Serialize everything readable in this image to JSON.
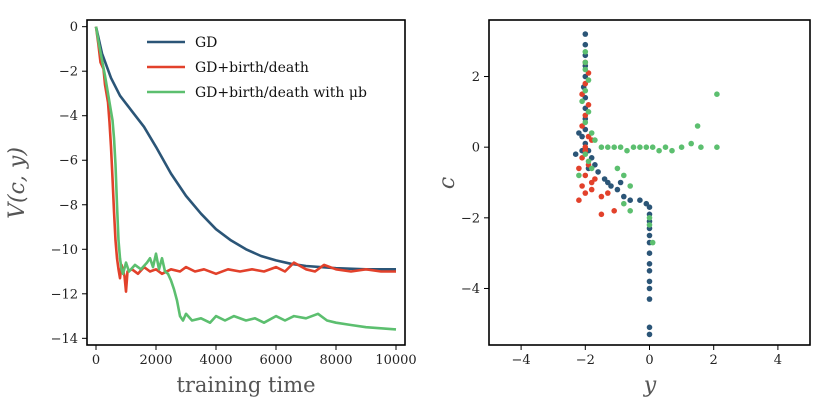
{
  "chart_data": [
    {
      "type": "line",
      "xlabel": "training time",
      "ylabel": "V(c, y)",
      "xlim": [
        -300,
        10300
      ],
      "ylim": [
        -14.3,
        0.3
      ],
      "xticks": [
        0,
        2000,
        4000,
        6000,
        8000,
        10000
      ],
      "yticks": [
        0,
        -2,
        -4,
        -6,
        -8,
        -10,
        -12,
        -14
      ],
      "xtick_labels": [
        "0",
        "2000",
        "4000",
        "6000",
        "8000",
        "10000"
      ],
      "ytick_labels": [
        "0",
        "−2",
        "−4",
        "−6",
        "−8",
        "−10",
        "−12",
        "−14"
      ],
      "legend": {
        "placement": "top-right",
        "entries": [
          "GD",
          "GD+birth/death",
          "GD+birth/death with μb"
        ]
      },
      "series": [
        {
          "name": "GD",
          "color": "#2b5577",
          "points": [
            [
              0,
              0
            ],
            [
              200,
              -1.2
            ],
            [
              500,
              -2.3
            ],
            [
              800,
              -3.1
            ],
            [
              1200,
              -3.8
            ],
            [
              1600,
              -4.5
            ],
            [
              2000,
              -5.4
            ],
            [
              2500,
              -6.6
            ],
            [
              3000,
              -7.6
            ],
            [
              3500,
              -8.4
            ],
            [
              4000,
              -9.1
            ],
            [
              4500,
              -9.6
            ],
            [
              5000,
              -10.0
            ],
            [
              5500,
              -10.3
            ],
            [
              6000,
              -10.5
            ],
            [
              6500,
              -10.65
            ],
            [
              7000,
              -10.75
            ],
            [
              8000,
              -10.85
            ],
            [
              9000,
              -10.9
            ],
            [
              10000,
              -10.9
            ]
          ]
        },
        {
          "name": "GD+birth/death",
          "color": "#e2412b",
          "points": [
            [
              0,
              0
            ],
            [
              80,
              -0.8
            ],
            [
              150,
              -1.6
            ],
            [
              250,
              -1.9
            ],
            [
              300,
              -2.6
            ],
            [
              400,
              -3.4
            ],
            [
              450,
              -4.3
            ],
            [
              500,
              -5.4
            ],
            [
              550,
              -6.8
            ],
            [
              600,
              -8.3
            ],
            [
              650,
              -9.6
            ],
            [
              700,
              -10.4
            ],
            [
              750,
              -10.9
            ],
            [
              800,
              -11.3
            ],
            [
              850,
              -10.7
            ],
            [
              950,
              -11.2
            ],
            [
              1000,
              -11.9
            ],
            [
              1050,
              -11.0
            ],
            [
              1200,
              -10.9
            ],
            [
              1400,
              -11.1
            ],
            [
              1600,
              -10.8
            ],
            [
              1800,
              -11.0
            ],
            [
              2000,
              -10.9
            ],
            [
              2200,
              -11.1
            ],
            [
              2500,
              -10.9
            ],
            [
              2800,
              -11.0
            ],
            [
              3000,
              -10.8
            ],
            [
              3300,
              -11.0
            ],
            [
              3600,
              -10.9
            ],
            [
              4000,
              -11.1
            ],
            [
              4400,
              -10.9
            ],
            [
              4800,
              -11.0
            ],
            [
              5200,
              -10.9
            ],
            [
              5600,
              -11.0
            ],
            [
              6000,
              -10.8
            ],
            [
              6300,
              -11.0
            ],
            [
              6600,
              -10.6
            ],
            [
              7000,
              -10.9
            ],
            [
              7300,
              -11.0
            ],
            [
              7600,
              -10.7
            ],
            [
              8000,
              -10.9
            ],
            [
              8500,
              -11.0
            ],
            [
              9000,
              -10.9
            ],
            [
              9500,
              -11.0
            ],
            [
              10000,
              -11.0
            ]
          ]
        },
        {
          "name": "GD+birth/death with μb",
          "color": "#5cbf6f",
          "points": [
            [
              0,
              0
            ],
            [
              100,
              -0.8
            ],
            [
              200,
              -1.5
            ],
            [
              300,
              -2.2
            ],
            [
              400,
              -3.0
            ],
            [
              500,
              -3.8
            ],
            [
              550,
              -4.2
            ],
            [
              600,
              -5.0
            ],
            [
              650,
              -6.2
            ],
            [
              700,
              -8.0
            ],
            [
              750,
              -9.6
            ],
            [
              800,
              -10.4
            ],
            [
              850,
              -10.9
            ],
            [
              900,
              -11.1
            ],
            [
              1000,
              -10.6
            ],
            [
              1100,
              -11.0
            ],
            [
              1300,
              -10.7
            ],
            [
              1500,
              -10.9
            ],
            [
              1700,
              -10.6
            ],
            [
              1800,
              -10.4
            ],
            [
              1900,
              -10.8
            ],
            [
              2000,
              -10.2
            ],
            [
              2100,
              -10.9
            ],
            [
              2200,
              -10.4
            ],
            [
              2300,
              -11.0
            ],
            [
              2400,
              -11.1
            ],
            [
              2500,
              -11.4
            ],
            [
              2600,
              -11.8
            ],
            [
              2700,
              -12.3
            ],
            [
              2800,
              -13.0
            ],
            [
              2900,
              -13.2
            ],
            [
              3000,
              -12.9
            ],
            [
              3200,
              -13.2
            ],
            [
              3500,
              -13.1
            ],
            [
              3800,
              -13.3
            ],
            [
              4000,
              -13.0
            ],
            [
              4300,
              -13.2
            ],
            [
              4600,
              -13.0
            ],
            [
              5000,
              -13.2
            ],
            [
              5300,
              -13.1
            ],
            [
              5600,
              -13.3
            ],
            [
              6000,
              -13.0
            ],
            [
              6300,
              -13.2
            ],
            [
              6600,
              -13.0
            ],
            [
              7000,
              -13.1
            ],
            [
              7400,
              -12.9
            ],
            [
              7700,
              -13.2
            ],
            [
              8000,
              -13.3
            ],
            [
              8500,
              -13.4
            ],
            [
              9000,
              -13.5
            ],
            [
              9500,
              -13.55
            ],
            [
              10000,
              -13.6
            ]
          ]
        }
      ]
    },
    {
      "type": "scatter",
      "xlabel": "y",
      "ylabel": "c",
      "xlim": [
        -5,
        5
      ],
      "ylim": [
        -5.6,
        3.6
      ],
      "xticks": [
        -4,
        -2,
        0,
        2,
        4
      ],
      "yticks": [
        2,
        0,
        -2,
        -4
      ],
      "xtick_labels": [
        "−4",
        "−2",
        "0",
        "2",
        "4"
      ],
      "ytick_labels": [
        "2",
        "0",
        "−2",
        "−4"
      ],
      "series": [
        {
          "color": "#2b5577",
          "points": [
            [
              -2.0,
              3.2
            ],
            [
              -2.0,
              2.9
            ],
            [
              -2.0,
              2.6
            ],
            [
              -2.0,
              2.3
            ],
            [
              -2.0,
              2.0
            ],
            [
              -2.05,
              1.7
            ],
            [
              -2.0,
              1.4
            ],
            [
              -2.0,
              1.1
            ],
            [
              -2.0,
              0.8
            ],
            [
              -2.0,
              0.5
            ],
            [
              -2.1,
              0.3
            ],
            [
              -2.0,
              0.1
            ],
            [
              -1.9,
              -0.1
            ],
            [
              -1.8,
              -0.3
            ],
            [
              -2.2,
              0.4
            ],
            [
              -2.1,
              -0.1
            ],
            [
              -1.7,
              -0.5
            ],
            [
              -1.6,
              -0.7
            ],
            [
              -1.4,
              -0.9
            ],
            [
              -1.2,
              -1.1
            ],
            [
              -1.0,
              -1.2
            ],
            [
              -0.8,
              -1.4
            ],
            [
              -0.6,
              -1.5
            ],
            [
              -0.3,
              -1.5
            ],
            [
              -0.1,
              -1.6
            ],
            [
              0.0,
              -1.7
            ],
            [
              0.0,
              -1.9
            ],
            [
              0.0,
              -2.1
            ],
            [
              0.0,
              -2.3
            ],
            [
              0.0,
              -2.5
            ],
            [
              0.0,
              -2.7
            ],
            [
              0.0,
              -3.0
            ],
            [
              0.0,
              -3.3
            ],
            [
              0.0,
              -3.5
            ],
            [
              0.0,
              -3.8
            ],
            [
              0.0,
              -4.0
            ],
            [
              0.0,
              -4.3
            ],
            [
              0.0,
              -5.1
            ],
            [
              0.0,
              -5.3
            ],
            [
              -1.3,
              -1.0
            ],
            [
              -0.9,
              -1.0
            ],
            [
              -1.9,
              -0.6
            ],
            [
              -2.3,
              -0.2
            ]
          ]
        },
        {
          "color": "#e2412b",
          "points": [
            [
              -2.0,
              2.4
            ],
            [
              -1.9,
              2.1
            ],
            [
              -2.0,
              1.8
            ],
            [
              -2.1,
              1.5
            ],
            [
              -1.9,
              1.2
            ],
            [
              -2.0,
              0.9
            ],
            [
              -2.1,
              0.6
            ],
            [
              -1.9,
              0.3
            ],
            [
              -2.0,
              0.0
            ],
            [
              -2.1,
              -0.3
            ],
            [
              -1.9,
              -0.5
            ],
            [
              -2.0,
              -0.8
            ],
            [
              -2.1,
              -1.1
            ],
            [
              -2.0,
              -1.3
            ],
            [
              -2.2,
              -1.5
            ],
            [
              -1.8,
              -1.2
            ],
            [
              -1.7,
              -0.9
            ],
            [
              -1.5,
              -1.4
            ],
            [
              -1.3,
              -1.3
            ],
            [
              -1.1,
              -1.8
            ],
            [
              -1.5,
              -1.9
            ],
            [
              -1.8,
              -1.0
            ],
            [
              -2.2,
              -0.6
            ],
            [
              -2.0,
              -0.1
            ],
            [
              -1.8,
              0.2
            ]
          ]
        },
        {
          "color": "#5cbf6f",
          "points": [
            [
              -2.0,
              2.7
            ],
            [
              -2.0,
              2.4
            ],
            [
              -2.0,
              2.2
            ],
            [
              -1.9,
              1.9
            ],
            [
              -2.0,
              1.6
            ],
            [
              -2.1,
              1.3
            ],
            [
              -1.9,
              1.0
            ],
            [
              -2.0,
              0.7
            ],
            [
              -1.8,
              0.4
            ],
            [
              -1.7,
              0.2
            ],
            [
              -1.5,
              0.0
            ],
            [
              -1.3,
              0.0
            ],
            [
              -1.1,
              0.0
            ],
            [
              -0.9,
              0.0
            ],
            [
              -0.7,
              -0.1
            ],
            [
              -0.5,
              0.0
            ],
            [
              -0.3,
              0.0
            ],
            [
              -0.1,
              0.0
            ],
            [
              0.1,
              0.0
            ],
            [
              0.3,
              -0.1
            ],
            [
              0.5,
              0.0
            ],
            [
              0.7,
              -0.1
            ],
            [
              1.0,
              0.0
            ],
            [
              1.3,
              0.1
            ],
            [
              1.6,
              0.0
            ],
            [
              2.1,
              0.0
            ],
            [
              1.5,
              0.6
            ],
            [
              2.1,
              1.5
            ],
            [
              -2.0,
              -0.2
            ],
            [
              -1.9,
              -0.4
            ],
            [
              -1.8,
              -0.6
            ],
            [
              -2.2,
              -0.8
            ],
            [
              -1.0,
              -0.6
            ],
            [
              -0.8,
              -0.8
            ],
            [
              -0.6,
              -1.1
            ],
            [
              -0.8,
              -1.6
            ],
            [
              -0.6,
              -1.8
            ],
            [
              0.0,
              -2.0
            ],
            [
              0.0,
              -2.2
            ],
            [
              0.1,
              -2.7
            ]
          ]
        }
      ]
    }
  ]
}
